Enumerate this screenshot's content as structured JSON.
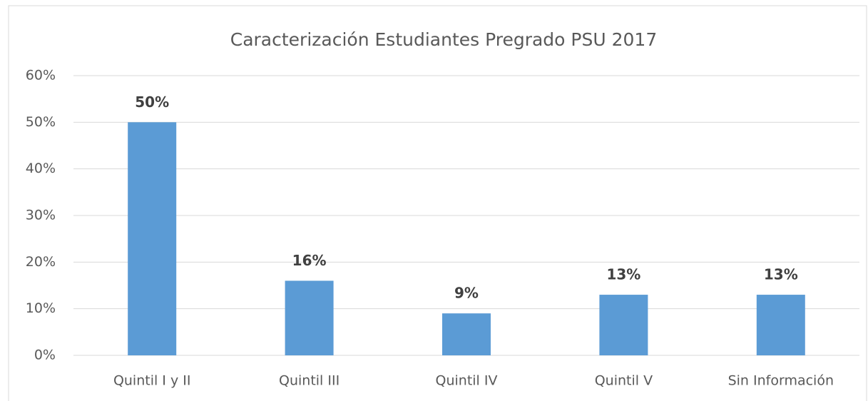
{
  "chart_data": {
    "type": "bar",
    "title": "Caracterización Estudiantes Pregrado PSU 2017",
    "categories": [
      "Quintil I y II",
      "Quintil III",
      "Quintil IV",
      "Quintil V",
      "Sin Información"
    ],
    "values": [
      50,
      16,
      9,
      13,
      13
    ],
    "value_labels": [
      "50%",
      "16%",
      "9%",
      "13%",
      "13%"
    ],
    "color": "#5b9bd5",
    "ylim": [
      0,
      60
    ],
    "yticks": [
      {
        "value": 0,
        "label": "0%"
      },
      {
        "value": 10,
        "label": "10%"
      },
      {
        "value": 20,
        "label": "20%"
      },
      {
        "value": 30,
        "label": "30%"
      },
      {
        "value": 40,
        "label": "40%"
      },
      {
        "value": 50,
        "label": "50%"
      },
      {
        "value": 60,
        "label": "60%"
      }
    ],
    "grid": true
  }
}
